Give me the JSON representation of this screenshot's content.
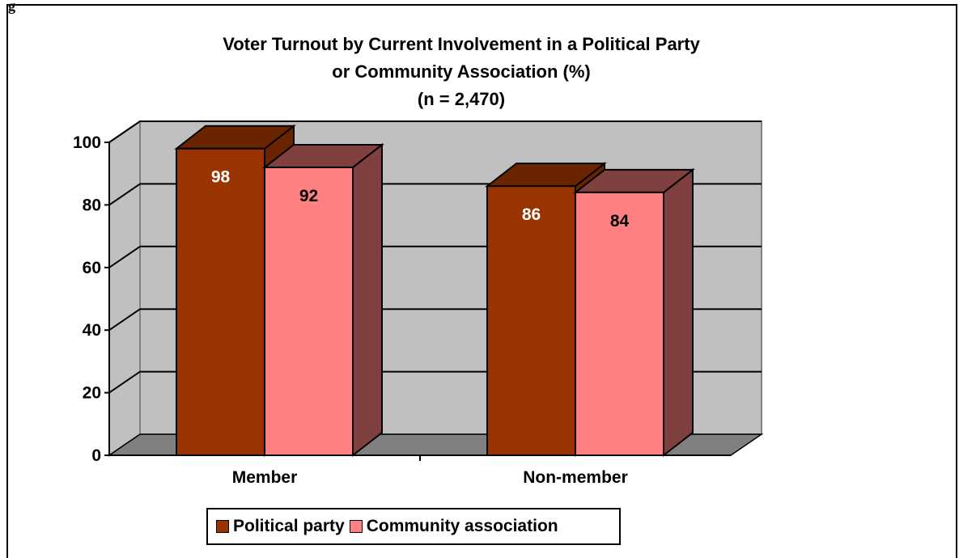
{
  "page": {
    "corner_label": "g"
  },
  "chart_data": {
    "type": "bar",
    "title_lines": [
      "Voter Turnout by Current Involvement in a Political Party",
      "or Community Association (%)",
      "(n = 2,470)"
    ],
    "categories": [
      "Member",
      "Non-member"
    ],
    "series": [
      {
        "name": "Political party",
        "values": [
          98,
          86
        ],
        "color": "#993300",
        "side_color": "#6b2400",
        "label_color": "#ffffff"
      },
      {
        "name": "Community association",
        "values": [
          92,
          84
        ],
        "color": "#ff8080",
        "side_color": "#804040",
        "label_color": "#000000"
      }
    ],
    "ylim": [
      0,
      100
    ],
    "yticks": [
      "0",
      "20",
      "40",
      "60",
      "80",
      "100"
    ],
    "ytick_values": [
      0,
      20,
      40,
      60,
      80,
      100
    ],
    "grid": true,
    "wall_color": "#c0c0c0",
    "floor_color": "#808080",
    "legend_position": "bottom"
  }
}
